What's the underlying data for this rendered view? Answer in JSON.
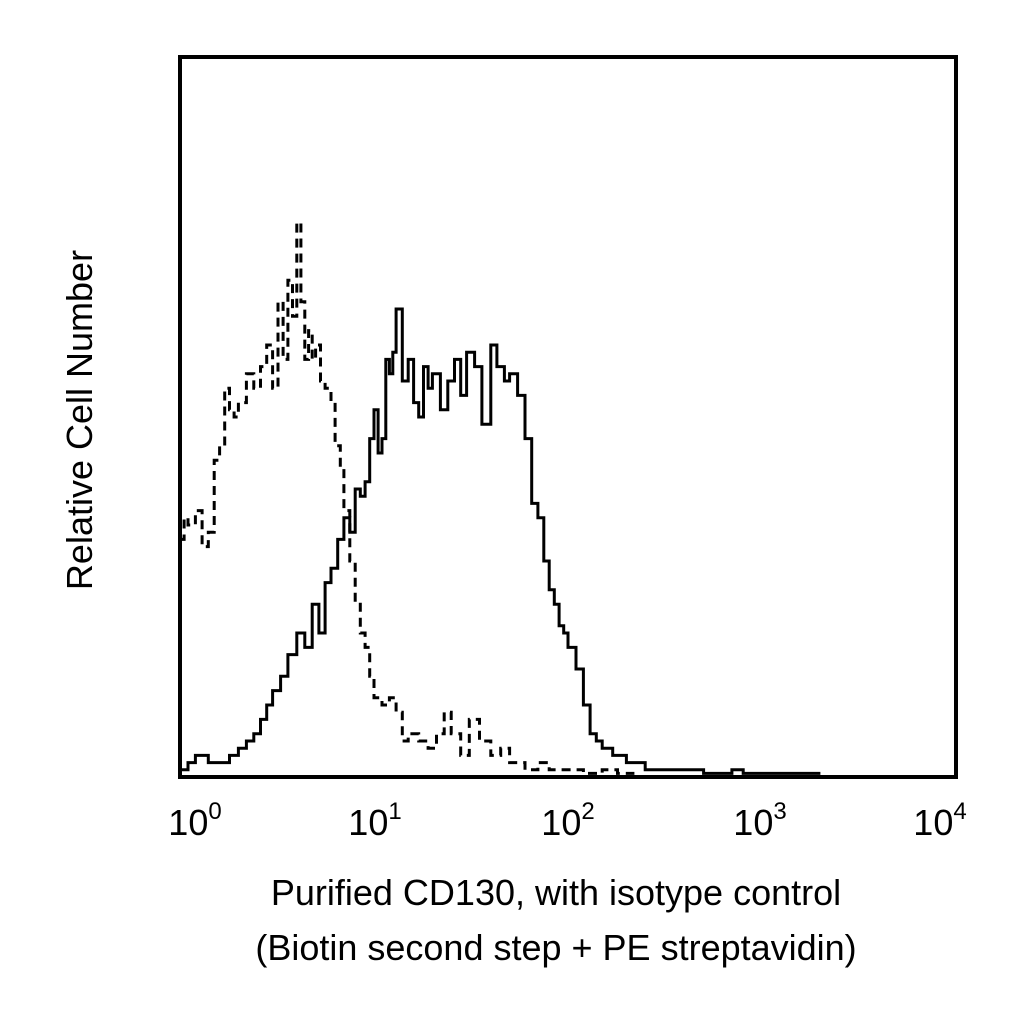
{
  "chart_data": {
    "type": "line",
    "title": "",
    "xlabel": "Purified CD130, with isotype control",
    "xlabel_line2": "(Biotin second step + PE streptavidin)",
    "ylabel": "Relative Cell Number",
    "xscale": "log",
    "xlim": [
      1,
      10000
    ],
    "ylim": [
      0,
      100
    ],
    "grid": false,
    "legend": "none",
    "x_ticks": [
      {
        "base": "10",
        "exp": "0"
      },
      {
        "base": "10",
        "exp": "1"
      },
      {
        "base": "10",
        "exp": "2"
      },
      {
        "base": "10",
        "exp": "3"
      },
      {
        "base": "10",
        "exp": "4"
      }
    ],
    "series": [
      {
        "style": "dashed",
        "color": "#000000",
        "x": [
          1.0,
          1.05,
          1.1,
          1.2,
          1.3,
          1.4,
          1.5,
          1.6,
          1.7,
          1.8,
          1.9,
          2.0,
          2.2,
          2.4,
          2.6,
          2.8,
          3.0,
          3.2,
          3.4,
          3.6,
          3.8,
          4.0,
          4.2,
          4.4,
          4.6,
          4.8,
          5.0,
          5.3,
          5.6,
          6.0,
          6.3,
          6.7,
          7.0,
          7.5,
          8.0,
          8.5,
          9.0,
          9.5,
          10,
          11,
          12,
          13,
          14,
          15,
          17,
          19,
          21,
          23,
          25,
          28,
          31,
          35,
          40,
          45,
          50,
          60,
          70,
          80,
          100,
          120,
          150,
          180,
          220
        ],
        "y": [
          33,
          36,
          35,
          37,
          32,
          34,
          44,
          46,
          54,
          51,
          50,
          52,
          56,
          54,
          57,
          60,
          54,
          66,
          58,
          69,
          64,
          77,
          66,
          58,
          62,
          58,
          60,
          55,
          54,
          52,
          46,
          43,
          37,
          30,
          24,
          20,
          18,
          14,
          11,
          10,
          11,
          9,
          5,
          6,
          5,
          4,
          6,
          9,
          6,
          3,
          8,
          5,
          3,
          4,
          2,
          1,
          2,
          1,
          1,
          0.5,
          1,
          0.5,
          0.5
        ]
      },
      {
        "style": "solid",
        "color": "#000000",
        "x": [
          1.0,
          1.1,
          1.2,
          1.4,
          1.6,
          1.8,
          2.0,
          2.2,
          2.4,
          2.6,
          2.8,
          3.0,
          3.3,
          3.6,
          4.0,
          4.4,
          4.8,
          5.2,
          5.6,
          6.0,
          6.5,
          7.0,
          7.5,
          8.0,
          8.5,
          9.0,
          9.5,
          10,
          10.5,
          11,
          11.5,
          12,
          12.5,
          13,
          14,
          15,
          16,
          17,
          18,
          19,
          20,
          22,
          24,
          26,
          28,
          30,
          33,
          36,
          40,
          43,
          47,
          50,
          55,
          60,
          65,
          70,
          75,
          80,
          85,
          90,
          95,
          100,
          110,
          120,
          130,
          140,
          150,
          170,
          200,
          250,
          300,
          400,
          500,
          600,
          700,
          800,
          1000,
          1200,
          1500,
          2000
        ],
        "y": [
          1,
          2,
          3,
          2,
          2,
          3,
          4,
          5,
          6,
          8,
          10,
          12,
          14,
          17,
          20,
          18,
          24,
          20,
          27,
          29,
          33,
          36,
          34,
          40,
          39,
          41,
          47,
          51,
          45,
          47,
          58,
          56,
          59,
          65,
          55,
          58,
          52,
          50,
          57,
          54,
          56,
          51,
          55,
          58,
          53,
          59,
          57,
          49,
          60,
          57,
          55,
          56,
          53,
          47,
          38,
          36,
          30,
          26,
          24,
          21,
          20,
          18,
          15,
          10,
          6,
          5,
          4,
          3,
          2,
          1,
          1,
          1,
          0.5,
          0.5,
          1,
          0.5,
          0.5,
          0.5,
          0.5,
          0.5
        ]
      }
    ]
  }
}
